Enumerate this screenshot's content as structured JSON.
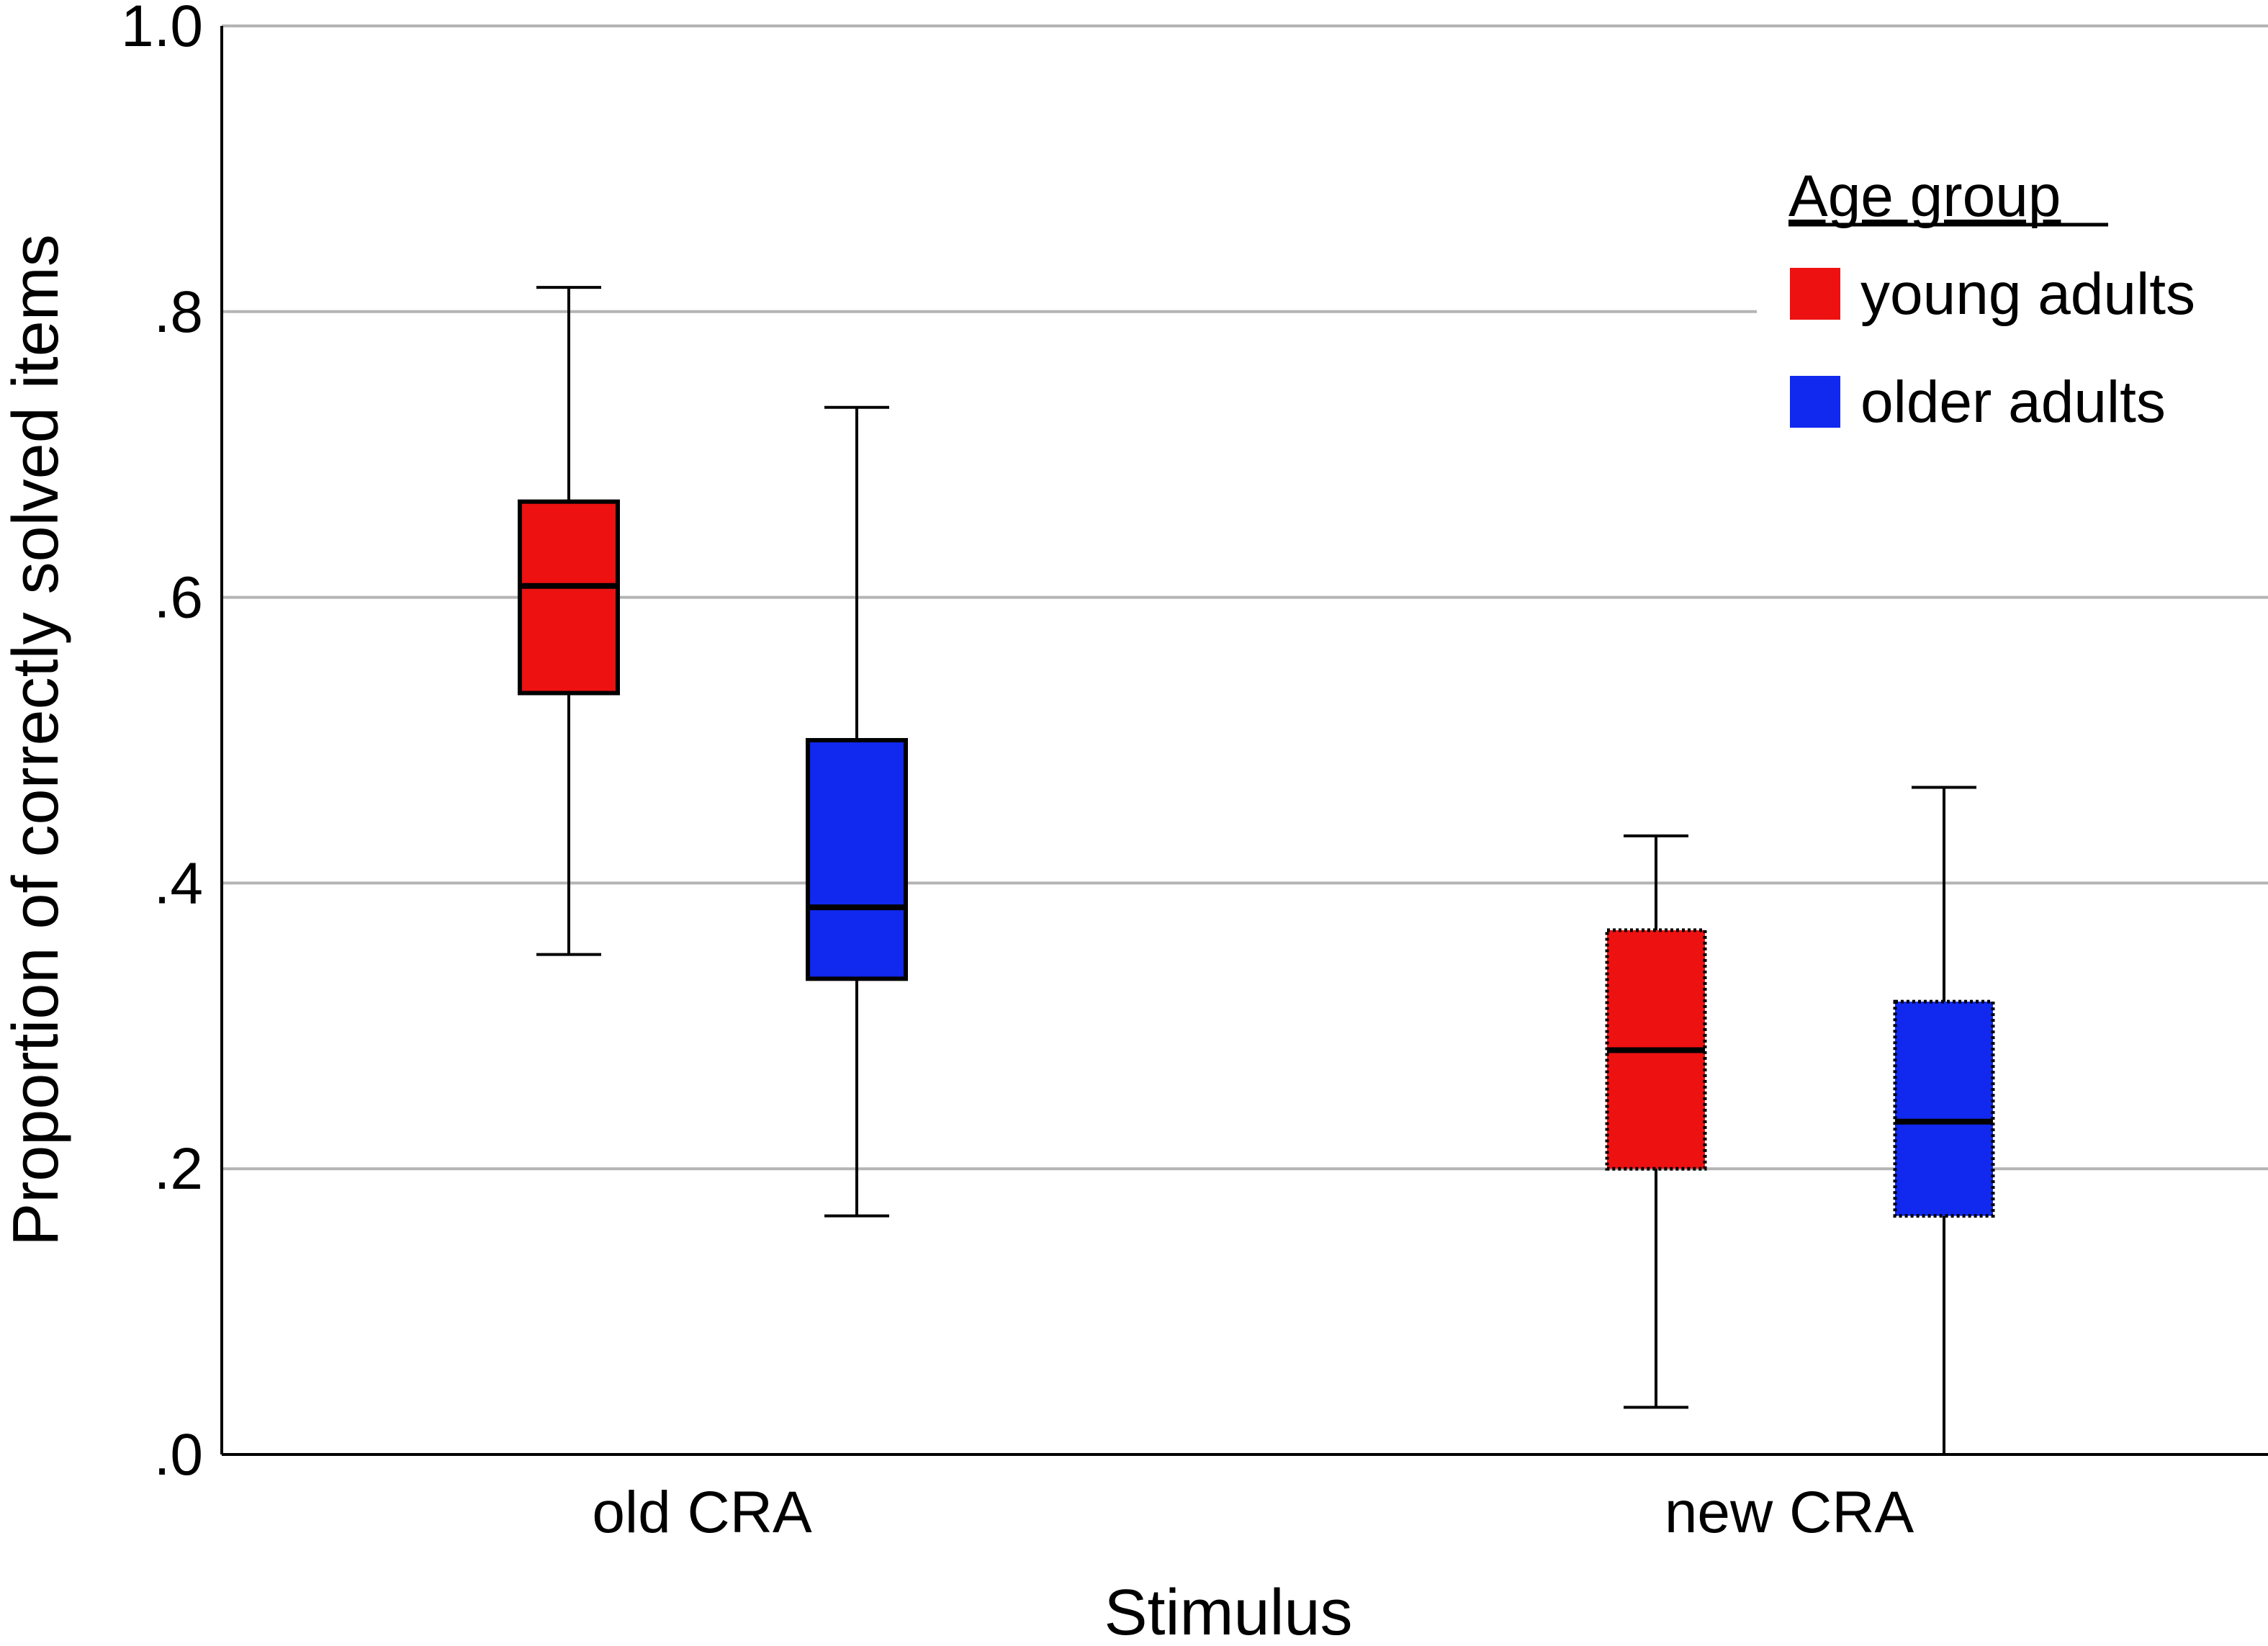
{
  "chart_data": {
    "type": "boxplot",
    "title": "",
    "xlabel": "Stimulus",
    "ylabel": "Proportion of correctly solved items",
    "ylim": [
      0,
      1
    ],
    "yticks": [
      {
        "value": 0.0,
        "label": ".0"
      },
      {
        "value": 0.2,
        "label": ".2"
      },
      {
        "value": 0.4,
        "label": ".4"
      },
      {
        "value": 0.6,
        "label": ".6"
      },
      {
        "value": 0.8,
        "label": ".8"
      },
      {
        "value": 1.0,
        "label": "1.0"
      }
    ],
    "categories": [
      "old CRA",
      "new CRA"
    ],
    "legend": {
      "title": "Age group",
      "position": "top-right"
    },
    "series": [
      {
        "name": "young adults",
        "color": "#ee1111",
        "boxes": [
          {
            "category": "old CRA",
            "whisker_low": 0.35,
            "q1": 0.533,
            "median": 0.608,
            "q3": 0.667,
            "whisker_high": 0.817,
            "dotted_border": false
          },
          {
            "category": "new CRA",
            "whisker_low": 0.033,
            "q1": 0.2,
            "median": 0.283,
            "q3": 0.367,
            "whisker_high": 0.433,
            "dotted_border": true
          }
        ]
      },
      {
        "name": "older adults",
        "color": "#1128ee",
        "boxes": [
          {
            "category": "old CRA",
            "whisker_low": 0.167,
            "q1": 0.333,
            "median": 0.383,
            "q3": 0.5,
            "whisker_high": 0.733,
            "dotted_border": false
          },
          {
            "category": "new CRA",
            "whisker_low": 0.0,
            "q1": 0.167,
            "median": 0.233,
            "q3": 0.317,
            "whisker_high": 0.467,
            "dotted_border": true
          }
        ]
      }
    ]
  }
}
